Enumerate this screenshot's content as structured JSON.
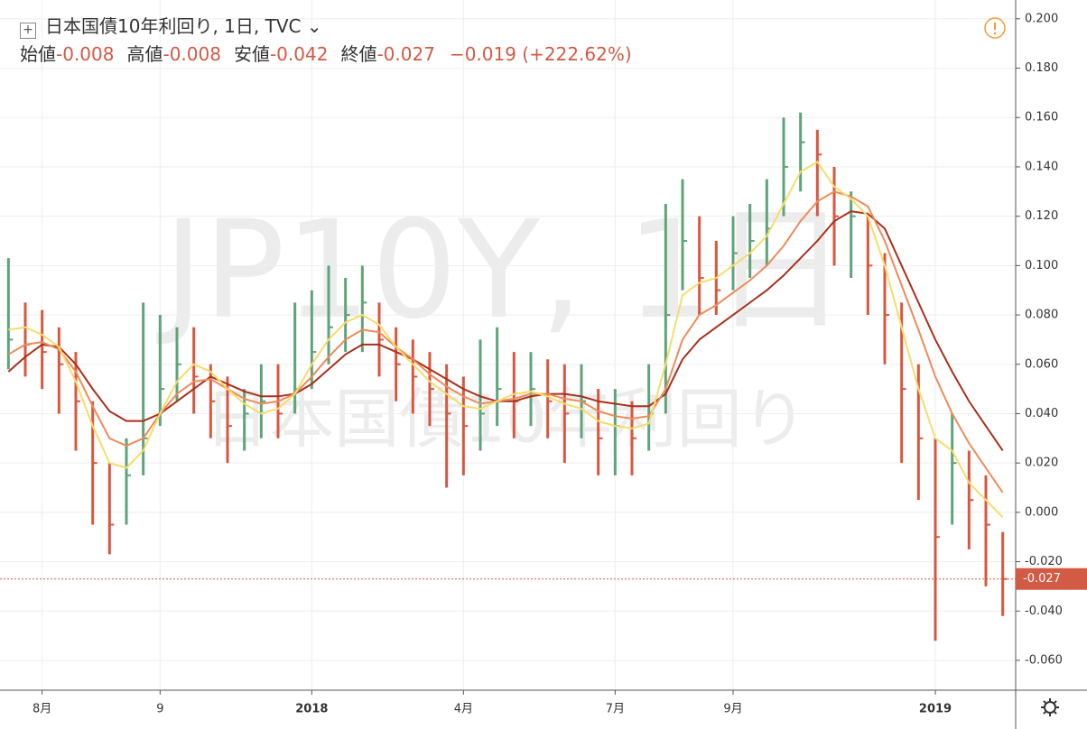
{
  "chart_data": {
    "type": "ohlc",
    "title": "日本国債10年利回り, 1日, TVC",
    "quote": [
      {
        "label": "始値",
        "value": "-0.008"
      },
      {
        "label": "高値",
        "value": "-0.008"
      },
      {
        "label": "安値",
        "value": "-0.042"
      },
      {
        "label": "終値",
        "value": "-0.027"
      }
    ],
    "change": "−0.019 (+222.62%)",
    "watermark": [
      "JP10Y, 1日",
      "日本国債10年利回り"
    ],
    "categories": [
      null,
      null,
      "8月",
      null,
      null,
      null,
      null,
      null,
      null,
      "9",
      null,
      null,
      null,
      null,
      null,
      null,
      null,
      null,
      "2018",
      null,
      null,
      null,
      null,
      null,
      null,
      null,
      null,
      "4月",
      null,
      null,
      null,
      null,
      null,
      null,
      null,
      null,
      "7月",
      null,
      null,
      null,
      null,
      null,
      null,
      "9月",
      null,
      null,
      null,
      null,
      null,
      null,
      null,
      null,
      null,
      null,
      null,
      "2019",
      null,
      null,
      null,
      null
    ],
    "high": [
      0.103,
      0.085,
      0.082,
      0.075,
      0.065,
      0.045,
      0.02,
      0.03,
      0.085,
      0.08,
      0.075,
      0.075,
      0.06,
      0.055,
      0.05,
      0.06,
      0.06,
      0.085,
      0.09,
      0.1,
      0.095,
      0.1,
      0.085,
      0.075,
      0.07,
      0.065,
      0.06,
      0.055,
      0.07,
      0.075,
      0.065,
      0.065,
      0.062,
      0.06,
      0.06,
      0.05,
      0.05,
      0.045,
      0.06,
      0.125,
      0.135,
      0.12,
      0.11,
      0.12,
      0.125,
      0.135,
      0.16,
      0.162,
      0.155,
      0.14,
      0.13,
      0.12,
      0.105,
      0.085,
      0.06,
      0.03,
      0.04,
      0.025,
      0.015,
      -0.008
    ],
    "low": [
      0.058,
      0.055,
      0.05,
      0.04,
      0.025,
      -0.005,
      -0.017,
      -0.005,
      0.015,
      0.035,
      0.045,
      0.04,
      0.03,
      0.02,
      0.025,
      0.03,
      0.03,
      0.04,
      0.05,
      0.06,
      0.065,
      0.065,
      0.055,
      0.045,
      0.04,
      0.035,
      0.01,
      0.015,
      0.025,
      0.035,
      0.03,
      0.035,
      0.03,
      0.02,
      0.03,
      0.015,
      0.015,
      0.015,
      0.025,
      0.04,
      0.09,
      0.08,
      0.08,
      0.09,
      0.095,
      0.1,
      0.12,
      0.13,
      0.12,
      0.1,
      0.095,
      0.08,
      0.06,
      0.02,
      0.005,
      -0.052,
      -0.005,
      -0.015,
      -0.03,
      -0.042
    ],
    "close": [
      0.07,
      0.068,
      0.065,
      0.06,
      0.045,
      0.02,
      -0.005,
      0.015,
      0.03,
      0.05,
      0.06,
      0.055,
      0.045,
      0.035,
      0.04,
      0.045,
      0.04,
      0.05,
      0.065,
      0.075,
      0.08,
      0.085,
      0.07,
      0.06,
      0.055,
      0.05,
      0.04,
      0.035,
      0.04,
      0.05,
      0.045,
      0.05,
      0.045,
      0.04,
      0.045,
      0.03,
      0.035,
      0.03,
      0.04,
      0.08,
      0.11,
      0.095,
      0.09,
      0.105,
      0.11,
      0.115,
      0.14,
      0.15,
      0.145,
      0.12,
      0.12,
      0.1,
      0.08,
      0.05,
      0.03,
      -0.01,
      0.02,
      0.005,
      -0.005,
      -0.027
    ],
    "up_color": "#5fa37a",
    "down_color": "#d9573f",
    "last_color": "#d35a45",
    "moving_averages": [
      {
        "color": "#a8301c",
        "values": [
          0.057,
          0.063,
          0.068,
          0.067,
          0.06,
          0.05,
          0.041,
          0.037,
          0.037,
          0.04,
          0.045,
          0.05,
          0.055,
          0.052,
          0.049,
          0.047,
          0.047,
          0.048,
          0.052,
          0.058,
          0.064,
          0.068,
          0.068,
          0.065,
          0.062,
          0.058,
          0.054,
          0.05,
          0.047,
          0.045,
          0.045,
          0.047,
          0.048,
          0.048,
          0.047,
          0.045,
          0.044,
          0.043,
          0.043,
          0.048,
          0.062,
          0.07,
          0.075,
          0.08,
          0.085,
          0.09,
          0.096,
          0.103,
          0.11,
          0.118,
          0.122,
          0.121,
          0.115,
          0.1,
          0.085,
          0.07,
          0.057,
          0.045,
          0.035,
          0.025
        ]
      },
      {
        "color": "#ee8a5a",
        "values": [
          0.064,
          0.068,
          0.069,
          0.066,
          0.057,
          0.043,
          0.03,
          0.027,
          0.03,
          0.04,
          0.048,
          0.053,
          0.054,
          0.05,
          0.046,
          0.044,
          0.045,
          0.048,
          0.055,
          0.063,
          0.07,
          0.074,
          0.073,
          0.067,
          0.062,
          0.056,
          0.051,
          0.047,
          0.044,
          0.045,
          0.046,
          0.048,
          0.048,
          0.046,
          0.045,
          0.041,
          0.039,
          0.038,
          0.039,
          0.05,
          0.07,
          0.08,
          0.084,
          0.089,
          0.094,
          0.1,
          0.108,
          0.118,
          0.126,
          0.13,
          0.128,
          0.124,
          0.11,
          0.092,
          0.074,
          0.055,
          0.04,
          0.028,
          0.018,
          0.008
        ]
      },
      {
        "color": "#f6dc6a",
        "values": [
          0.074,
          0.075,
          0.072,
          0.067,
          0.053,
          0.035,
          0.02,
          0.018,
          0.025,
          0.04,
          0.053,
          0.06,
          0.057,
          0.05,
          0.044,
          0.04,
          0.042,
          0.048,
          0.06,
          0.07,
          0.077,
          0.08,
          0.076,
          0.067,
          0.06,
          0.053,
          0.048,
          0.043,
          0.042,
          0.045,
          0.048,
          0.049,
          0.047,
          0.044,
          0.042,
          0.037,
          0.035,
          0.034,
          0.036,
          0.06,
          0.088,
          0.093,
          0.095,
          0.1,
          0.105,
          0.112,
          0.125,
          0.138,
          0.142,
          0.132,
          0.127,
          0.12,
          0.1,
          0.075,
          0.05,
          0.03,
          0.025,
          0.012,
          0.005,
          -0.002
        ]
      }
    ],
    "ylim": [
      -0.06513,
      0.2025
    ],
    "yticks": [
      {
        "value": 0.2,
        "label": "0.200"
      },
      {
        "value": 0.18,
        "label": "0.180"
      },
      {
        "value": 0.16,
        "label": "0.160"
      },
      {
        "value": 0.14,
        "label": "0.140"
      },
      {
        "value": 0.12,
        "label": "0.120"
      },
      {
        "value": 0.1,
        "label": "0.100"
      },
      {
        "value": 0.08,
        "label": "0.080"
      },
      {
        "value": 0.06,
        "label": "0.060"
      },
      {
        "value": 0.04,
        "label": "0.040"
      },
      {
        "value": 0.02,
        "label": "0.020"
      },
      {
        "value": 0,
        "label": "0.000"
      },
      {
        "value": -0.02,
        "label": "-0.020"
      },
      {
        "value": -0.04,
        "label": "-0.040"
      },
      {
        "value": -0.06,
        "label": "-0.060"
      }
    ],
    "grid": true
  }
}
